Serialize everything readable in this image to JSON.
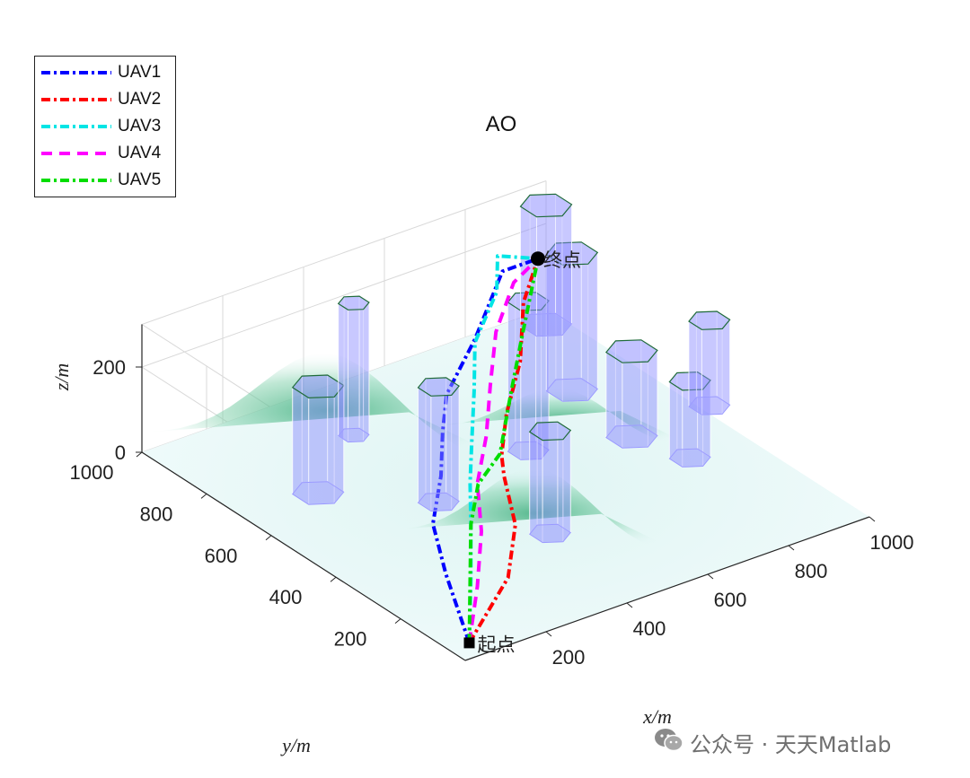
{
  "chart_data": {
    "type": "line3d",
    "title": "AO",
    "xlabel": "x/m",
    "ylabel": "y/m",
    "zlabel": "z/m",
    "xlim": [
      0,
      1000
    ],
    "ylim": [
      0,
      1000
    ],
    "zlim": [
      0,
      300
    ],
    "x_ticks": [
      "200",
      "400",
      "600",
      "800",
      "1000"
    ],
    "y_ticks": [
      "200",
      "400",
      "600",
      "800",
      "1000"
    ],
    "z_ticks": [
      "0",
      "200"
    ],
    "grid": true,
    "legend_position": "top-left",
    "start_label": "起点",
    "end_label": "终点",
    "start": {
      "x": 50,
      "y": 50,
      "z": 0
    },
    "goal": {
      "x": 900,
      "y": 900,
      "z": 200
    },
    "terrain_peaks": [
      {
        "x": 300,
        "y": 800,
        "h": 230,
        "sigma": 150
      },
      {
        "x": 400,
        "y": 280,
        "h": 180,
        "sigma": 120
      },
      {
        "x": 700,
        "y": 580,
        "h": 120,
        "sigma": 110
      }
    ],
    "obstacles": [
      {
        "x": 180,
        "y": 680,
        "r": 50,
        "h": 250
      },
      {
        "x": 380,
        "y": 820,
        "r": 30,
        "h": 310
      },
      {
        "x": 350,
        "y": 520,
        "r": 40,
        "h": 270
      },
      {
        "x": 450,
        "y": 300,
        "r": 40,
        "h": 240
      },
      {
        "x": 620,
        "y": 580,
        "r": 40,
        "h": 350
      },
      {
        "x": 840,
        "y": 720,
        "r": 50,
        "h": 320
      },
      {
        "x": 820,
        "y": 510,
        "r": 50,
        "h": 200
      },
      {
        "x": 860,
        "y": 380,
        "r": 40,
        "h": 180
      },
      {
        "x": 1020,
        "y": 520,
        "r": 40,
        "h": 200
      },
      {
        "x": 960,
        "y": 950,
        "r": 50,
        "h": 280
      }
    ],
    "series": [
      {
        "name": "UAV1",
        "color": "#0000ff",
        "dash": "10,4,3,4",
        "points": [
          [
            50,
            50,
            0
          ],
          [
            120,
            210,
            60
          ],
          [
            160,
            300,
            120
          ],
          [
            260,
            400,
            150
          ],
          [
            360,
            520,
            160
          ],
          [
            450,
            620,
            170
          ],
          [
            600,
            720,
            200
          ],
          [
            780,
            860,
            230
          ],
          [
            900,
            900,
            200
          ]
        ]
      },
      {
        "name": "UAV2",
        "color": "#ff0000",
        "dash": "10,4,3,4",
        "points": [
          [
            50,
            50,
            0
          ],
          [
            210,
            130,
            60
          ],
          [
            300,
            220,
            110
          ],
          [
            360,
            330,
            150
          ],
          [
            450,
            450,
            110
          ],
          [
            550,
            560,
            120
          ],
          [
            680,
            680,
            140
          ],
          [
            800,
            820,
            170
          ],
          [
            900,
            900,
            200
          ]
        ]
      },
      {
        "name": "UAV3",
        "color": "#00e5e5",
        "dash": "10,4,3,4",
        "points": [
          [
            50,
            50,
            0
          ],
          [
            150,
            170,
            60
          ],
          [
            230,
            270,
            110
          ],
          [
            300,
            360,
            140
          ],
          [
            400,
            480,
            140
          ],
          [
            470,
            560,
            200
          ],
          [
            560,
            670,
            230
          ],
          [
            710,
            790,
            240
          ],
          [
            800,
            900,
            240
          ],
          [
            900,
            900,
            200
          ]
        ]
      },
      {
        "name": "UAV4",
        "color": "#ff00ff",
        "dash": "12,8",
        "points": [
          [
            50,
            50,
            0
          ],
          [
            150,
            150,
            50
          ],
          [
            240,
            250,
            100
          ],
          [
            310,
            350,
            140
          ],
          [
            420,
            460,
            160
          ],
          [
            510,
            560,
            200
          ],
          [
            620,
            680,
            230
          ],
          [
            760,
            800,
            240
          ],
          [
            900,
            900,
            200
          ]
        ]
      },
      {
        "name": "UAV5",
        "color": "#00dd00",
        "dash": "10,4,3,4",
        "points": [
          [
            50,
            50,
            0
          ],
          [
            140,
            160,
            50
          ],
          [
            230,
            270,
            110
          ],
          [
            320,
            360,
            130
          ],
          [
            430,
            430,
            130
          ],
          [
            560,
            560,
            160
          ],
          [
            700,
            700,
            180
          ],
          [
            900,
            900,
            200
          ]
        ]
      }
    ],
    "colors": {
      "terrain_low": "#e8f8f8",
      "terrain_high": "#4fb587",
      "obstacle_fill": "#8c8cff",
      "obstacle_edge": "#1f6b3a",
      "grid": "#d9d9d9",
      "axis": "#262626"
    }
  },
  "watermark": {
    "icon": "wechat-icon",
    "text": "公众号 · 天天Matlab"
  }
}
